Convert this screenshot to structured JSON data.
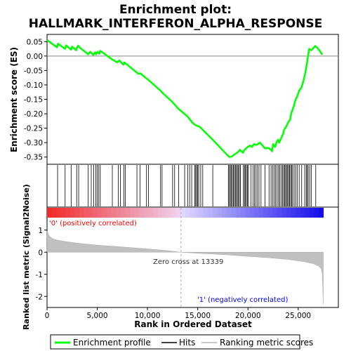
{
  "chart_data": {
    "type": "line",
    "title_line1": "Enrichment plot:",
    "title_line2": "HALLMARK_INTERFERON_ALPHA_RESPONSE",
    "es_panel": {
      "ylabel": "Enrichment score (ES)",
      "ylim": [
        -0.375,
        0.075
      ],
      "yticks": [
        0.05,
        0.0,
        -0.05,
        -0.1,
        -0.15,
        -0.2,
        -0.25,
        -0.3,
        -0.35
      ],
      "ytick_labels": [
        "0.05",
        "0.00",
        "-0.05",
        "-0.10",
        "-0.15",
        "-0.20",
        "-0.25",
        "-0.30",
        "-0.35"
      ],
      "line_color": "#00ff00",
      "series": [
        {
          "name": "Enrichment profile",
          "x": [
            0,
            1000,
            1100,
            1800,
            1900,
            2400,
            2500,
            2900,
            3000,
            3100,
            3300,
            4100,
            4300,
            4600,
            4800,
            4900,
            5000,
            5200,
            5300,
            6500,
            7000,
            7200,
            7600,
            7700,
            7900,
            8900,
            9100,
            9300,
            9900,
            10000,
            11300,
            11400,
            11500,
            12500,
            13000,
            14000,
            14500,
            14800,
            15200,
            16500,
            18000,
            18200,
            18400,
            18600,
            18800,
            19000,
            19200,
            19500,
            19600,
            19800,
            20000,
            20200,
            20400,
            20600,
            20800,
            21000,
            21200,
            21700,
            22000,
            22200,
            22400,
            22500,
            22700,
            22900,
            23000,
            23100,
            23300,
            23500,
            23600,
            23800,
            24000,
            24200,
            24300,
            24400,
            24600,
            24700,
            24900,
            25100,
            25300,
            25500,
            25700,
            25800,
            25900,
            26000,
            26100,
            26300,
            26700,
            27000,
            27400
          ],
          "y": [
            0.055,
            0.03,
            0.043,
            0.025,
            0.037,
            0.022,
            0.033,
            0.02,
            0.03,
            0.036,
            0.028,
            0.006,
            0.015,
            0.004,
            0.013,
            0.006,
            0.015,
            0.008,
            0.018,
            -0.012,
            -0.022,
            -0.015,
            -0.03,
            -0.022,
            -0.028,
            -0.056,
            -0.062,
            -0.06,
            -0.078,
            -0.08,
            -0.12,
            -0.124,
            -0.128,
            -0.16,
            -0.18,
            -0.21,
            -0.232,
            -0.24,
            -0.245,
            -0.29,
            -0.345,
            -0.35,
            -0.348,
            -0.342,
            -0.338,
            -0.333,
            -0.325,
            -0.335,
            -0.328,
            -0.32,
            -0.315,
            -0.31,
            -0.315,
            -0.305,
            -0.308,
            -0.305,
            -0.3,
            -0.32,
            -0.318,
            -0.322,
            -0.33,
            -0.305,
            -0.315,
            -0.295,
            -0.29,
            -0.3,
            -0.285,
            -0.27,
            -0.255,
            -0.245,
            -0.23,
            -0.22,
            -0.2,
            -0.19,
            -0.17,
            -0.155,
            -0.14,
            -0.12,
            -0.11,
            -0.09,
            -0.06,
            -0.04,
            -0.02,
            0.005,
            0.025,
            0.02,
            0.035,
            0.025,
            0.005
          ]
        }
      ]
    },
    "hits_panel": {
      "hit_positions": [
        1050,
        1800,
        2400,
        2950,
        3150,
        4100,
        4400,
        4650,
        4850,
        5000,
        5150,
        5300,
        6500,
        7100,
        7300,
        7650,
        7800,
        8950,
        9250,
        9900,
        10100,
        11300,
        11450,
        12500,
        12700,
        13100,
        13700,
        14000,
        14200,
        14400,
        14700,
        14800,
        14900,
        15000,
        15100,
        15300,
        15500,
        16500,
        18050,
        18150,
        18250,
        18350,
        18450,
        18550,
        18650,
        18750,
        18850,
        18950,
        19050,
        19150,
        19250,
        19550,
        19650,
        19750,
        19850,
        19950,
        20050,
        20300,
        20500,
        20650,
        20800,
        20950,
        21100,
        21300,
        21700,
        22100,
        22300,
        22450,
        22600,
        22750,
        22900,
        23050,
        23150,
        23300,
        23450,
        23550,
        23650,
        23750,
        23850,
        23950,
        24050,
        24150,
        24250,
        24350,
        24450,
        24600,
        24750,
        24900,
        25100,
        25350,
        25650,
        25800,
        25900,
        26000,
        26150,
        26300,
        26750
      ]
    },
    "ranked_panel": {
      "ylabel": "Ranked list metric (Signal2Noise)",
      "xlabel": "Rank in Ordered Dataset",
      "ylim": [
        -2.5,
        1.5
      ],
      "yticks": [
        1,
        0,
        -1,
        -2
      ],
      "ytick_labels": [
        "1",
        "0",
        "-1",
        "-2"
      ],
      "xlim": [
        0,
        29000
      ],
      "xticks": [
        0,
        5000,
        10000,
        15000,
        20000,
        25000
      ],
      "xtick_labels": [
        "0",
        "5,000",
        "10,000",
        "15,000",
        "20,000",
        "25,000"
      ],
      "metric_x": [
        0,
        200,
        500,
        1000,
        2000,
        3000,
        5000,
        8000,
        10000,
        12000,
        13339,
        15000,
        18000,
        20000,
        22000,
        24000,
        25500,
        26500,
        27000,
        27300,
        27400,
        27500
      ],
      "metric_y": [
        0.95,
        0.75,
        0.62,
        0.55,
        0.47,
        0.41,
        0.32,
        0.22,
        0.15,
        0.07,
        0.0,
        -0.05,
        -0.12,
        -0.19,
        -0.25,
        -0.33,
        -0.42,
        -0.52,
        -0.62,
        -0.75,
        -1.0,
        -2.35
      ],
      "zero_cross_rank": 13339,
      "zero_cross_label": "Zero cross at 13339",
      "pos_label": "'0' (positively correlated)",
      "neg_label": "'1' (negatively correlated)"
    },
    "legend": {
      "placement": "bottom",
      "items": [
        {
          "label": "Enrichment profile",
          "color": "#00ff00"
        },
        {
          "label": "Hits",
          "color": "#000000"
        },
        {
          "label": "Ranking metric scores",
          "color": "#c8c8c8"
        }
      ]
    },
    "colors": {
      "positive_label": "#ff0000",
      "negative_label": "#0000ff",
      "metric_fill": "#c0c0c0"
    }
  }
}
